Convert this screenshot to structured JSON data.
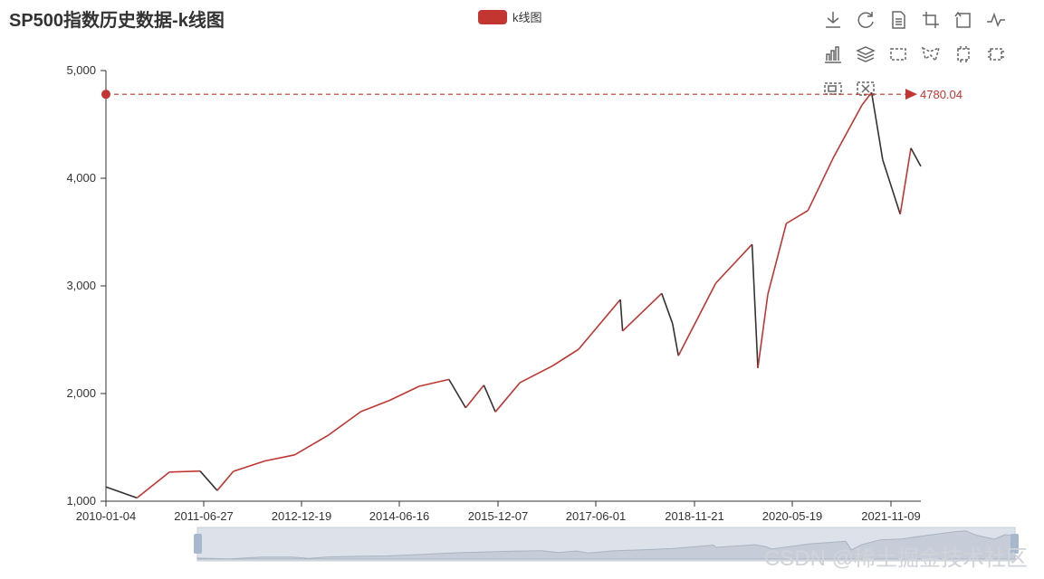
{
  "title": "SP500指数历史数据-k线图",
  "legend": {
    "label": "k线图",
    "color": "#c23531"
  },
  "toolbox": {
    "icons": [
      "download-icon",
      "refresh-icon",
      "data-view-icon",
      "zoom-icon",
      "zoom-back-icon",
      "line-chart-icon",
      "bar-chart-icon",
      "stack-icon",
      "rect-select-icon",
      "polygon-select-icon",
      "keep-select-icon",
      "clear-select-icon",
      "dataset-zoom-icon",
      "dataset-zoom-reset-icon"
    ]
  },
  "watermark": "CSDN @稀土掘金技术社区",
  "chart_data": {
    "type": "candlestick",
    "title": "SP500指数历史数据-k线图",
    "series": [
      {
        "name": "k线图",
        "up_color": "#c23531",
        "down_color": "#333333"
      }
    ],
    "x_tick_labels": [
      "2010-01-04",
      "2011-06-27",
      "2012-12-19",
      "2014-06-16",
      "2015-12-07",
      "2017-06-01",
      "2018-11-21",
      "2020-05-19",
      "2021-11-09"
    ],
    "y_tick_labels": [
      "1,000",
      "2,000",
      "3,000",
      "4,000",
      "5,000"
    ],
    "ylim": [
      1000,
      5000
    ],
    "x": [
      "2010-01-04",
      "2010-07-01",
      "2011-01-03",
      "2011-06-27",
      "2011-10-03",
      "2012-01-03",
      "2012-07-02",
      "2012-12-19",
      "2013-07-01",
      "2014-01-02",
      "2014-06-16",
      "2014-12-01",
      "2015-05-21",
      "2015-08-25",
      "2015-12-07",
      "2016-02-11",
      "2016-07-01",
      "2017-01-03",
      "2017-06-01",
      "2018-01-26",
      "2018-02-08",
      "2018-09-20",
      "2018-11-21",
      "2018-12-24",
      "2019-07-26",
      "2020-02-19",
      "2020-03-23",
      "2020-05-19",
      "2020-09-02",
      "2021-01-04",
      "2021-06-01",
      "2021-11-09",
      "2022-01-03",
      "2022-03-08",
      "2022-06-16",
      "2022-08-16",
      "2022-10-12"
    ],
    "close": [
      1133,
      1030,
      1271,
      1280,
      1099,
      1277,
      1374,
      1430,
      1614,
      1832,
      1937,
      2067,
      2131,
      1867,
      2077,
      1829,
      2102,
      2257,
      2411,
      2873,
      2581,
      2930,
      2649,
      2351,
      3025,
      3386,
      2237,
      2922,
      3580,
      3700,
      4200,
      4680,
      4797,
      4170,
      3666,
      4280,
      4110
    ],
    "mark_point": {
      "label": "4780.04",
      "value": 4780.04
    },
    "mark_line_value": 4780.04,
    "data_zoom": {
      "start": 0,
      "end": 100
    }
  }
}
